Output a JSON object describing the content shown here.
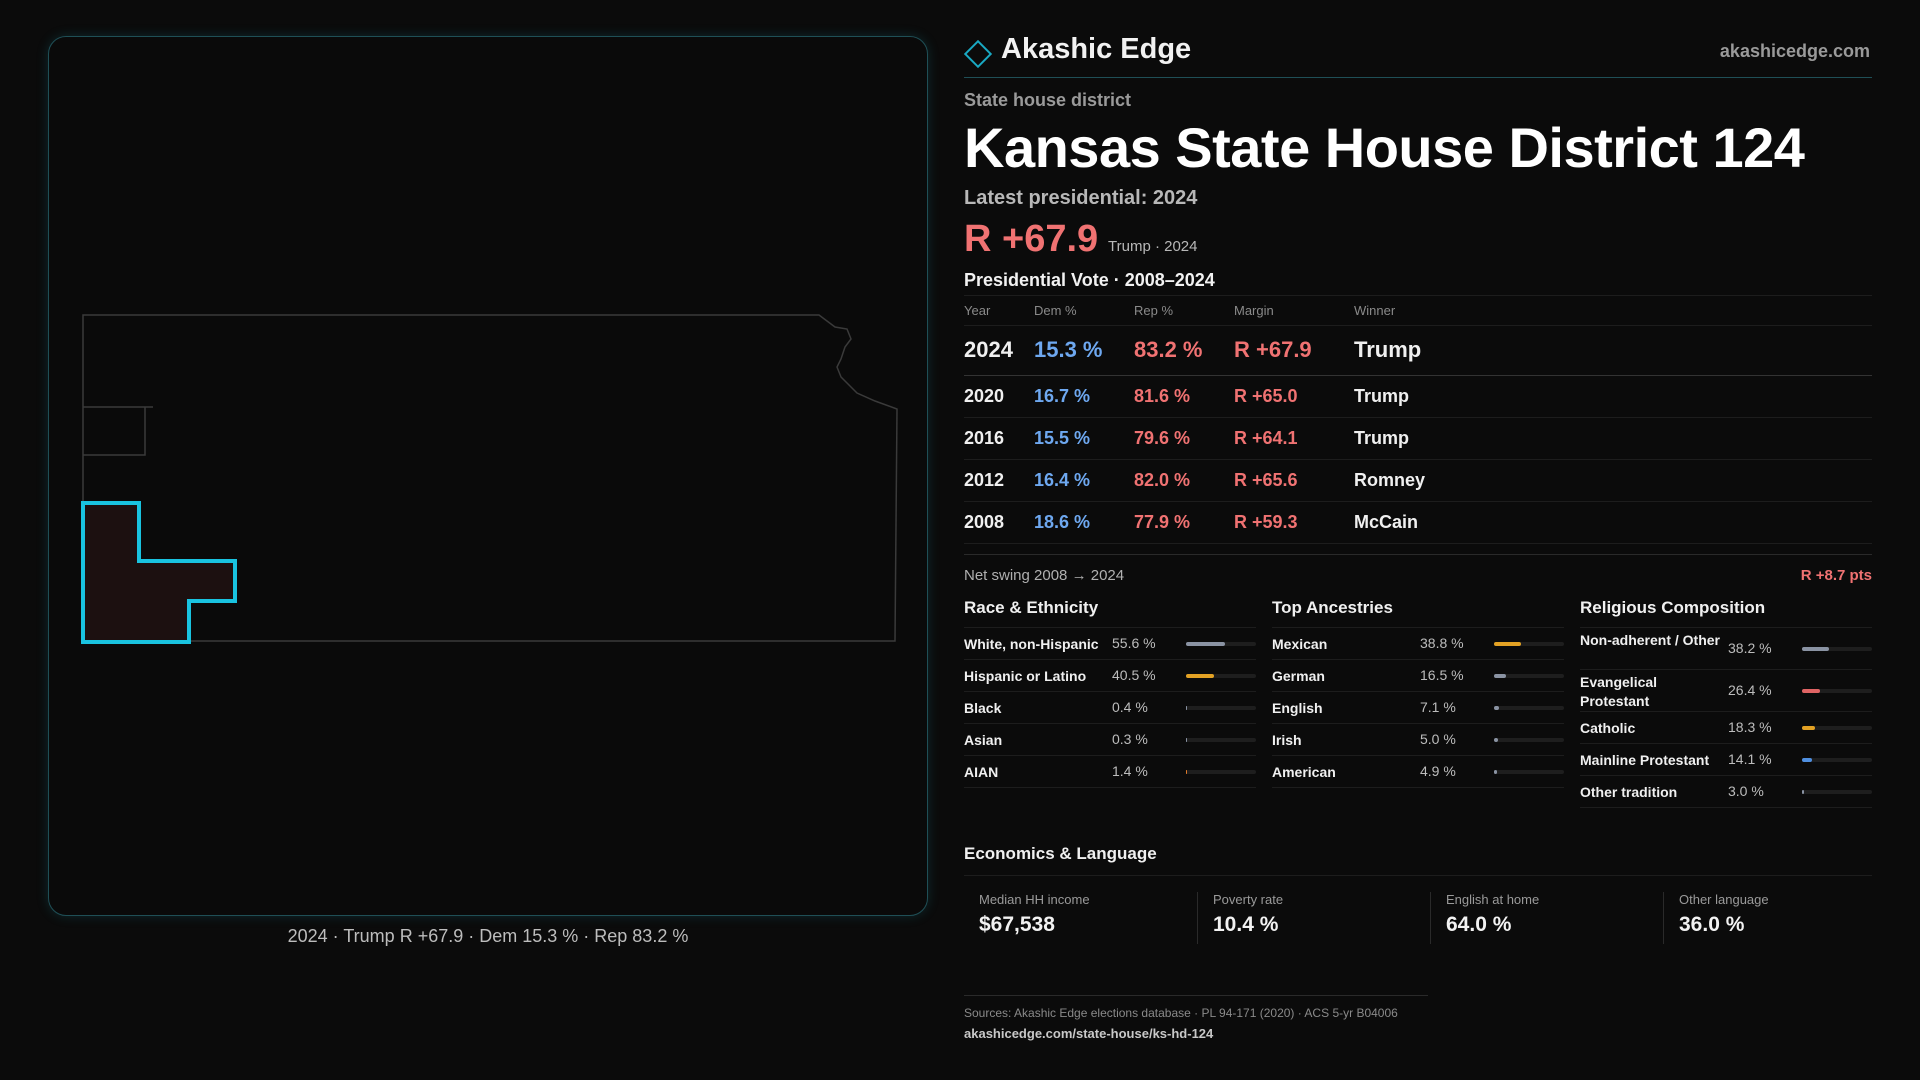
{
  "brand": {
    "name": "Akashic Edge",
    "url": "akashicedge.com"
  },
  "district": {
    "kicker": "State house district",
    "title": "Kansas State House District 124",
    "latest_label": "Latest presidential: 2024",
    "latest_margin": "R +67.9",
    "latest_sub": "Trump · 2024"
  },
  "map": {
    "caption": "2024 · Trump R +67.9 · Dem 15.3 % · Rep 83.2 %"
  },
  "votes": {
    "title": "Presidential Vote · 2008–2024",
    "headers": {
      "year": "Year",
      "dem": "Dem %",
      "rep": "Rep %",
      "margin": "Margin",
      "winner": "Winner"
    },
    "rows": [
      {
        "year": "2024",
        "dem": "15.3 %",
        "rep": "83.2 %",
        "margin": "R +67.9",
        "winner": "Trump"
      },
      {
        "year": "2020",
        "dem": "16.7 %",
        "rep": "81.6 %",
        "margin": "R +65.0",
        "winner": "Trump"
      },
      {
        "year": "2016",
        "dem": "15.5 %",
        "rep": "79.6 %",
        "margin": "R +64.1",
        "winner": "Trump"
      },
      {
        "year": "2012",
        "dem": "16.4 %",
        "rep": "82.0 %",
        "margin": "R +65.6",
        "winner": "Romney"
      },
      {
        "year": "2008",
        "dem": "18.6 %",
        "rep": "77.9 %",
        "margin": "R +59.3",
        "winner": "McCain"
      }
    ],
    "swing_label": "Net swing 2008 → 2024",
    "swing_value": "R +8.7 pts"
  },
  "race": {
    "title": "Race & Ethnicity",
    "items": [
      {
        "label": "White, non-Hispanic",
        "value": "55.6 %",
        "share": 0.556,
        "color": "#8a93a3"
      },
      {
        "label": "Hispanic or Latino",
        "value": "40.5 %",
        "share": 0.405,
        "color": "#e3a224"
      },
      {
        "label": "Black",
        "value": "0.4 %",
        "share": 0.004,
        "color": "#8a93a3"
      },
      {
        "label": "Asian",
        "value": "0.3 %",
        "share": 0.003,
        "color": "#8a93a3"
      },
      {
        "label": "AIAN",
        "value": "1.4 %",
        "share": 0.014,
        "color": "#e07a2a"
      }
    ]
  },
  "ancestries": {
    "title": "Top Ancestries",
    "items": [
      {
        "label": "Mexican",
        "value": "38.8 %",
        "share": 0.388,
        "color": "#e3a224"
      },
      {
        "label": "German",
        "value": "16.5 %",
        "share": 0.165,
        "color": "#8a93a3"
      },
      {
        "label": "English",
        "value": "7.1 %",
        "share": 0.071,
        "color": "#8a93a3"
      },
      {
        "label": "Irish",
        "value": "5.0 %",
        "share": 0.05,
        "color": "#8a93a3"
      },
      {
        "label": "American",
        "value": "4.9 %",
        "share": 0.049,
        "color": "#8a93a3"
      }
    ]
  },
  "religion": {
    "title": "Religious Composition",
    "items": [
      {
        "label": "Non-adherent / Other",
        "value": "38.2 %",
        "share": 0.382,
        "color": "#8a93a3"
      },
      {
        "label": "Evangelical Protestant",
        "value": "26.4 %",
        "share": 0.264,
        "color": "#e06464"
      },
      {
        "label": "Catholic",
        "value": "18.3 %",
        "share": 0.183,
        "color": "#e3a224"
      },
      {
        "label": "Mainline Protestant",
        "value": "14.1 %",
        "share": 0.141,
        "color": "#4f8fe0"
      },
      {
        "label": "Other tradition",
        "value": "3.0 %",
        "share": 0.03,
        "color": "#8a93a3"
      }
    ]
  },
  "economics": {
    "title": "Economics & Language",
    "cells": [
      {
        "label": "Median HH income",
        "value": "$67,538"
      },
      {
        "label": "Poverty rate",
        "value": "10.4 %"
      },
      {
        "label": "English at home",
        "value": "64.0 %"
      },
      {
        "label": "Other language",
        "value": "36.0 %"
      }
    ]
  },
  "footer": {
    "sources": "Sources: Akashic Edge elections database · PL 94-171 (2020) · ACS 5-yr B04006",
    "link": "akashicedge.com/state-house/ks-hd-124"
  },
  "colors": {
    "accent": "#19a9c3",
    "dem": "#6ea8f0",
    "rep": "#f07272"
  }
}
